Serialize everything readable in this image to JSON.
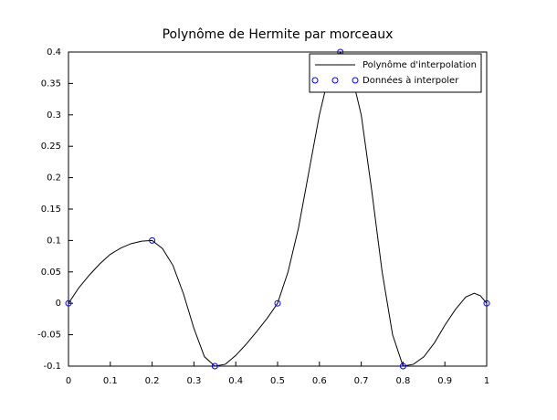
{
  "chart_data": {
    "type": "line",
    "title": "Polynôme de Hermite par morceaux",
    "xlim": [
      0,
      1
    ],
    "xticks": [
      0,
      0.1,
      0.2,
      0.3,
      0.4,
      0.5,
      0.6,
      0.7,
      0.8,
      0.9,
      1
    ],
    "ylim": [
      -0.1,
      0.4
    ],
    "yticks": [
      -0.1,
      -0.05,
      0,
      0.05,
      0.1,
      0.15,
      0.2,
      0.25,
      0.3,
      0.35,
      0.4
    ],
    "legend": "upper right",
    "series": [
      {
        "name": "Polynôme d'interpolation",
        "color": "#000000",
        "style": "line",
        "x": [
          0,
          0.025,
          0.05,
          0.075,
          0.1,
          0.125,
          0.15,
          0.175,
          0.2,
          0.225,
          0.25,
          0.275,
          0.3,
          0.325,
          0.35,
          0.375,
          0.4,
          0.425,
          0.45,
          0.475,
          0.5,
          0.525,
          0.55,
          0.575,
          0.6,
          0.625,
          0.65,
          0.675,
          0.7,
          0.725,
          0.75,
          0.775,
          0.8,
          0.825,
          0.85,
          0.875,
          0.9,
          0.925,
          0.95,
          0.97,
          0.985,
          1
        ],
        "values": [
          0,
          0.025,
          0.045,
          0.063,
          0.078,
          0.088,
          0.095,
          0.099,
          0.1,
          0.087,
          0.06,
          0.015,
          -0.04,
          -0.085,
          -0.1,
          -0.097,
          -0.083,
          -0.065,
          -0.045,
          -0.024,
          0,
          0.05,
          0.12,
          0.21,
          0.3,
          0.37,
          0.4,
          0.37,
          0.3,
          0.18,
          0.05,
          -0.05,
          -0.1,
          -0.097,
          -0.085,
          -0.063,
          -0.035,
          -0.01,
          0.01,
          0.016,
          0.012,
          0
        ]
      },
      {
        "name": "Données à interpoler",
        "color": "#0000ff",
        "style": "markers",
        "x": [
          0,
          0.2,
          0.35,
          0.5,
          0.65,
          0.8,
          1
        ],
        "values": [
          0,
          0.1,
          -0.1,
          0,
          0.4,
          -0.1,
          0
        ]
      }
    ]
  }
}
